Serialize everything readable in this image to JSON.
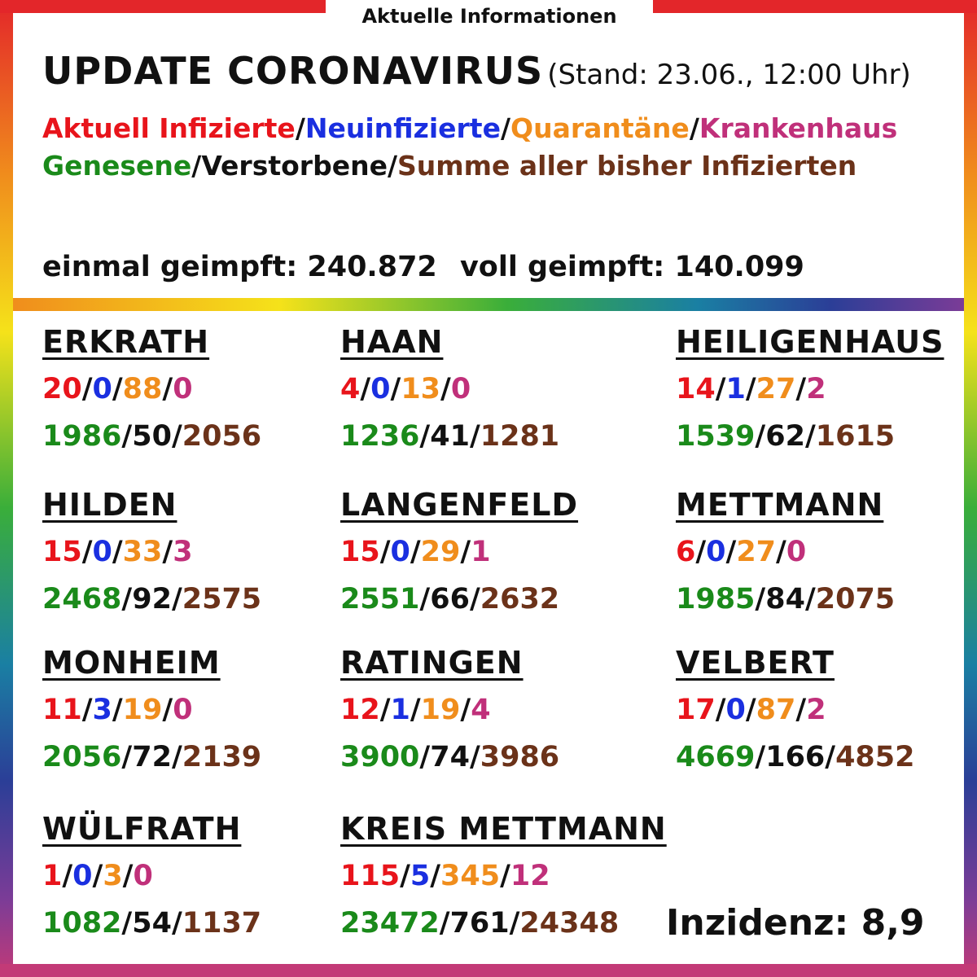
{
  "header": {
    "kicker": "Aktuelle Informationen",
    "title": "UPDATE CORONAVIRUS",
    "stand": "(Stand: 23.06., 12:00 Uhr)"
  },
  "legend": {
    "aktuell": "Aktuell Infizierte",
    "neu": "Neuinfizierte",
    "quarantaene": "Quarantäne",
    "krankenhaus": "Krankenhaus",
    "genesene": "Genesene",
    "verstorbene": "Verstorbene",
    "summe": "Summe aller bisher Infizierten",
    "sep": "/"
  },
  "vaccination": {
    "einmal": "einmal geimpft: 240.872",
    "voll": "voll geimpft: 140.099"
  },
  "colors": {
    "aktuell": "#e8141b",
    "neu": "#1a2fe0",
    "quarantaene": "#f08d1c",
    "krankenhaus": "#c0307a",
    "genesene": "#1a8a1a",
    "verstorbene": "#111111",
    "summe": "#6b3219"
  },
  "cities": [
    {
      "name": "ERKRATH",
      "a": "20",
      "n": "0",
      "q": "88",
      "k": "0",
      "g": "1986",
      "v": "50",
      "s": "2056"
    },
    {
      "name": "HAAN",
      "a": "4",
      "n": "0",
      "q": "13",
      "k": "0",
      "g": "1236",
      "v": "41",
      "s": "1281"
    },
    {
      "name": "HEILIGENHAUS",
      "a": "14",
      "n": "1",
      "q": "27",
      "k": "2",
      "g": "1539",
      "v": "62",
      "s": "1615"
    },
    {
      "name": "HILDEN",
      "a": "15",
      "n": "0",
      "q": "33",
      "k": "3",
      "g": "2468",
      "v": "92",
      "s": "2575"
    },
    {
      "name": "LANGENFELD",
      "a": "15",
      "n": "0",
      "q": "29",
      "k": "1",
      "g": "2551",
      "v": "66",
      "s": "2632"
    },
    {
      "name": "METTMANN",
      "a": "6",
      "n": "0",
      "q": "27",
      "k": "0",
      "g": "1985",
      "v": "84",
      "s": "2075"
    },
    {
      "name": "MONHEIM",
      "a": "11",
      "n": "3",
      "q": "19",
      "k": "0",
      "g": "2056",
      "v": "72",
      "s": "2139"
    },
    {
      "name": "RATINGEN",
      "a": "12",
      "n": "1",
      "q": "19",
      "k": "4",
      "g": "3900",
      "v": "74",
      "s": "3986"
    },
    {
      "name": "VELBERT",
      "a": "17",
      "n": "0",
      "q": "87",
      "k": "2",
      "g": "4669",
      "v": "166",
      "s": "4852"
    },
    {
      "name": "WÜLFRATH",
      "a": "1",
      "n": "0",
      "q": "3",
      "k": "0",
      "g": "1082",
      "v": "54",
      "s": "1137"
    },
    {
      "name": "KREIS METTMANN",
      "a": "115",
      "n": "5",
      "q": "345",
      "k": "12",
      "g": "23472",
      "v": "761",
      "s": "24348"
    }
  ],
  "inzidenz": "Inzidenz: 8,9"
}
